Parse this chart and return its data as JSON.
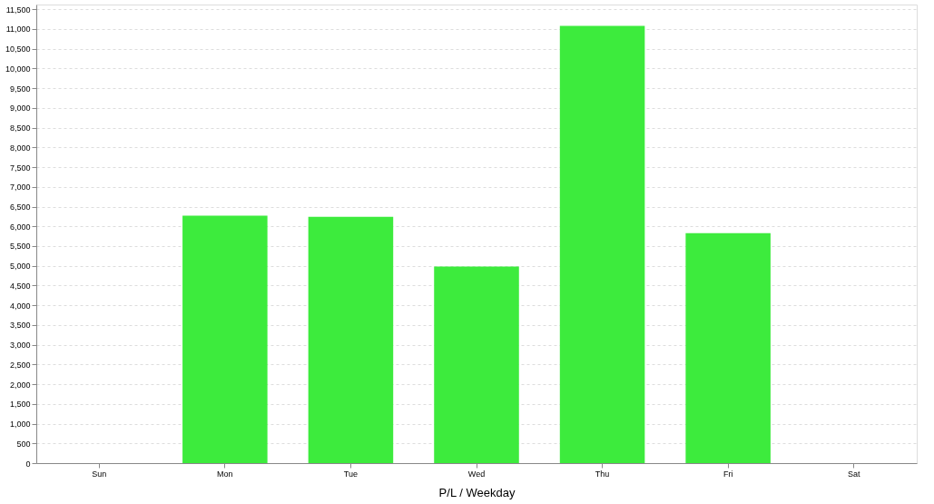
{
  "chart_data": {
    "type": "bar",
    "xlabel": "P/L / Weekday",
    "categories": [
      "Sun",
      "Mon",
      "Tue",
      "Wed",
      "Thu",
      "Fri",
      "Sat"
    ],
    "values": [
      0,
      6270,
      6240,
      4980,
      11080,
      5830,
      0
    ],
    "color": "#3deb3d",
    "ylim": [
      0,
      11620
    ],
    "yticks": [
      {
        "value": 0,
        "label": "0"
      },
      {
        "value": 500,
        "label": "500"
      },
      {
        "value": 1000,
        "label": "1,000"
      },
      {
        "value": 1500,
        "label": "1,500"
      },
      {
        "value": 2000,
        "label": "2,000"
      },
      {
        "value": 2500,
        "label": "2,500"
      },
      {
        "value": 3000,
        "label": "3,000"
      },
      {
        "value": 3500,
        "label": "3,500"
      },
      {
        "value": 4000,
        "label": "4,000"
      },
      {
        "value": 4500,
        "label": "4,500"
      },
      {
        "value": 5000,
        "label": "5,000"
      },
      {
        "value": 5500,
        "label": "5,500"
      },
      {
        "value": 6000,
        "label": "6,000"
      },
      {
        "value": 6500,
        "label": "6,500"
      },
      {
        "value": 7000,
        "label": "7,000"
      },
      {
        "value": 7500,
        "label": "7,500"
      },
      {
        "value": 8000,
        "label": "8,000"
      },
      {
        "value": 8500,
        "label": "8,500"
      },
      {
        "value": 9000,
        "label": "9,000"
      },
      {
        "value": 9500,
        "label": "9,500"
      },
      {
        "value": 10000,
        "label": "10,000"
      },
      {
        "value": 10500,
        "label": "10,500"
      },
      {
        "value": 11000,
        "label": "11,000"
      },
      {
        "value": 11500,
        "label": "11,500"
      }
    ],
    "grid": "y"
  }
}
